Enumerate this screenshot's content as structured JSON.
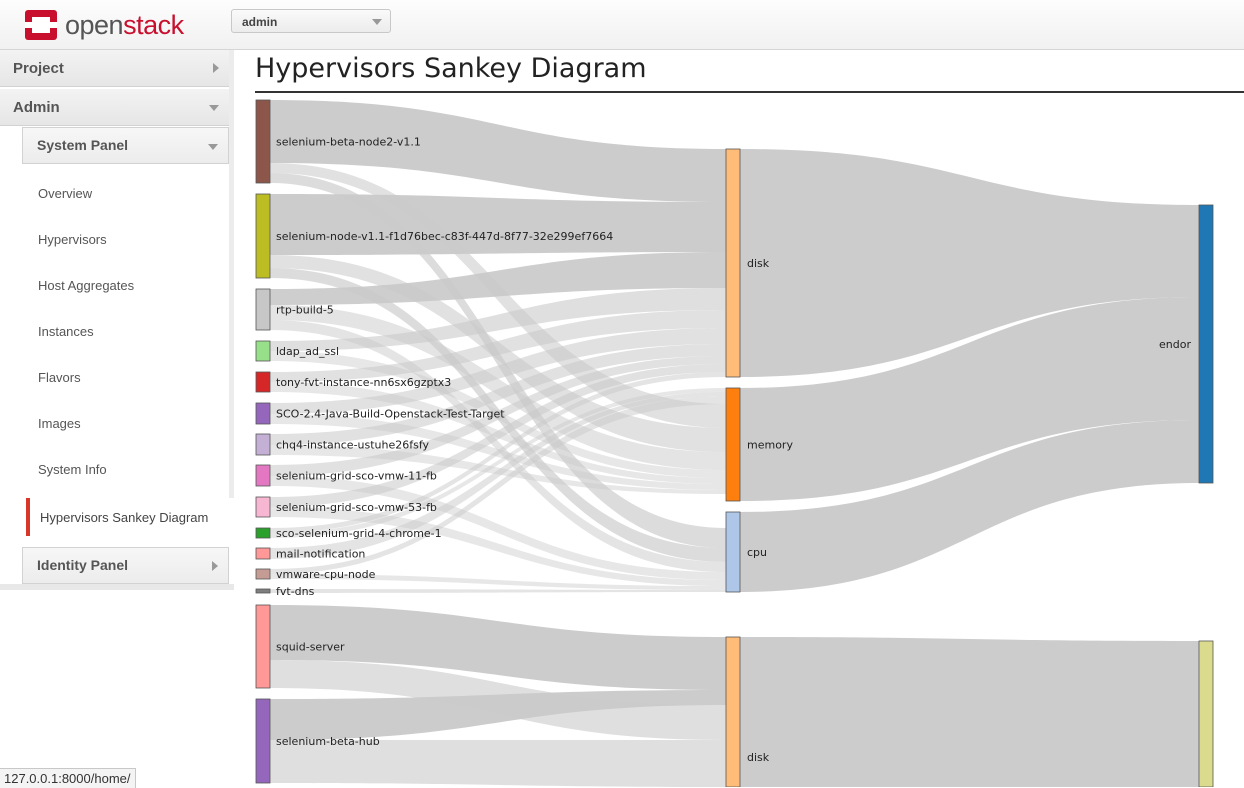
{
  "header": {
    "logo_text_open": "open",
    "logo_text_stack": "stack",
    "project_selector": "admin",
    "brand_color": "#c8102e"
  },
  "sidebar": {
    "dashboards": [
      {
        "label": "Project",
        "state": "collapsed"
      },
      {
        "label": "Admin",
        "state": "expanded"
      }
    ],
    "panels": [
      {
        "label": "System Panel",
        "state": "expanded"
      },
      {
        "label": "Identity Panel",
        "state": "collapsed"
      }
    ],
    "items": [
      {
        "label": "Overview"
      },
      {
        "label": "Hypervisors"
      },
      {
        "label": "Host Aggregates"
      },
      {
        "label": "Instances"
      },
      {
        "label": "Flavors"
      },
      {
        "label": "Images"
      },
      {
        "label": "System Info"
      },
      {
        "label": "Hypervisors Sankey Diagram",
        "active": true
      }
    ]
  },
  "main": {
    "title": "Hypervisors Sankey Diagram"
  },
  "sankey": {
    "sources": [
      {
        "name": "selenium-beta-node2-v1.1",
        "color": "#8c564b"
      },
      {
        "name": "selenium-node-v1.1-f1d76bec-c83f-447d-8f77-32e299ef7664",
        "color": "#bcbd22"
      },
      {
        "name": "rtp-build-5",
        "color": "#c7c7c7"
      },
      {
        "name": "ldap_ad_ssl",
        "color": "#98df8a"
      },
      {
        "name": "tony-fvt-instance-nn6sx6gzptx3",
        "color": "#d62728"
      },
      {
        "name": "SCO-2.4-Java-Build-Openstack-Test-Target",
        "color": "#9467bd"
      },
      {
        "name": "chq4-instance-ustuhe26fsfy",
        "color": "#c5b0d5"
      },
      {
        "name": "selenium-grid-sco-vmw-11-fb",
        "color": "#e377c2"
      },
      {
        "name": "selenium-grid-sco-vmw-53-fb",
        "color": "#f7b6d2"
      },
      {
        "name": "sco-selenium-grid-4-chrome-1",
        "color": "#2ca02c"
      },
      {
        "name": "mail-notification",
        "color": "#ff9896"
      },
      {
        "name": "vmware-cpu-node",
        "color": "#c49c94"
      },
      {
        "name": "fvt-dns",
        "color": "#7f7f7f"
      },
      {
        "name": "squid-server",
        "color": "#ff9896"
      },
      {
        "name": "selenium-beta-hub",
        "color": "#9467bd"
      }
    ],
    "resources": [
      {
        "name": "disk",
        "color": "#ffbb78"
      },
      {
        "name": "memory",
        "color": "#ff7f0e"
      },
      {
        "name": "cpu",
        "color": "#aec7e8"
      },
      {
        "name": "disk",
        "color": "#ffbb78"
      }
    ],
    "hosts": [
      {
        "name": "endor",
        "color": "#1f77b4"
      },
      {
        "name": "",
        "color": "#dbdb8d"
      }
    ],
    "link_color": "#c9c9c9"
  },
  "status_bar": {
    "url": "127.0.0.1:8000/home/"
  }
}
